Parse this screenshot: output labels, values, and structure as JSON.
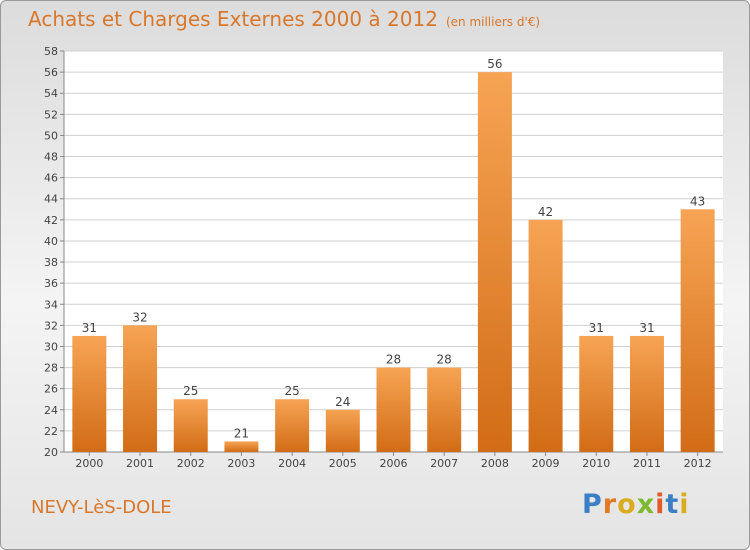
{
  "header": {
    "title": "Achats et Charges Externes 2000 à 2012",
    "unit": "(en milliers d'€)"
  },
  "footer": {
    "location": "NEVY-LèS-DOLE",
    "logo_text": "Proxiti"
  },
  "colors": {
    "accent_text": "#d9772a",
    "bar_light": "#f6a454",
    "bar_dark": "#d26c16",
    "logo_letters": [
      "#3b7fc4",
      "#e07a25",
      "#d9ad1f",
      "#7cba2f",
      "#e05a2a",
      "#3b7fc4",
      "#d9ad1f"
    ]
  },
  "chart_data": {
    "type": "bar",
    "title": "Achats et Charges Externes 2000 à 2012",
    "subtitle": "(en milliers d'€)",
    "categories": [
      "2000",
      "2001",
      "2002",
      "2003",
      "2004",
      "2005",
      "2006",
      "2007",
      "2008",
      "2009",
      "2010",
      "2011",
      "2012"
    ],
    "values": [
      31,
      32,
      25,
      21,
      25,
      24,
      28,
      28,
      56,
      42,
      31,
      31,
      43
    ],
    "ylim": [
      20,
      58
    ],
    "ytick_step": 2,
    "grid": true,
    "xlabel": "",
    "ylabel": ""
  }
}
